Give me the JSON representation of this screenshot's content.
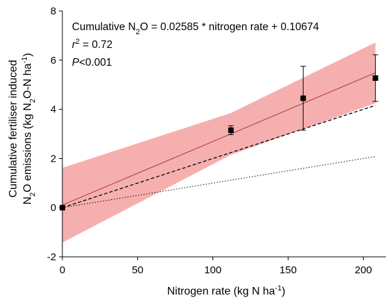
{
  "chart_data": {
    "type": "scatter",
    "xlabel": {
      "main": "Nitrogen rate (kg N ha",
      "sup": "-1",
      "end": ")"
    },
    "ylabel": {
      "line1": "Cumulative fertiliser induced",
      "line2_a": "N",
      "line2_sub": "2",
      "line2_b": "O emissions (kg N",
      "line2_sub2": "2",
      "line2_c": "O-N ha",
      "line2_sup": "-1",
      "line2_d": ")"
    },
    "xlim": [
      0,
      215
    ],
    "ylim": [
      -2,
      8
    ],
    "xticks": [
      0,
      50,
      100,
      150,
      200
    ],
    "yticks": [
      -2,
      0,
      2,
      4,
      6,
      8
    ],
    "annotations": {
      "equation_a": "Cumulative N",
      "equation_sub": "2",
      "equation_b": "O = 0.02585 * nitrogen rate + 0.10674",
      "r2_r": "r",
      "r2_sup": "2",
      "r2_rest": " = 0.72",
      "p_p": "P",
      "p_rest": "<0.001"
    },
    "points": [
      {
        "x": 0,
        "y": 0.0,
        "err": 0.0
      },
      {
        "x": 112,
        "y": 3.15,
        "err": 0.18
      },
      {
        "x": 160,
        "y": 4.45,
        "err": 1.3
      },
      {
        "x": 208,
        "y": 5.27,
        "err": 0.95
      }
    ],
    "regression": {
      "slope": 0.02585,
      "intercept": 0.10674,
      "x_range": [
        0,
        208
      ]
    },
    "confidence_band": {
      "upper": [
        [
          0,
          1.62
        ],
        [
          112,
          3.85
        ],
        [
          208,
          6.72
        ]
      ],
      "lower": [
        [
          0,
          -1.42
        ],
        [
          112,
          2.15
        ],
        [
          208,
          4.25
        ]
      ]
    },
    "dashed_line": [
      [
        0,
        0.0
      ],
      [
        208,
        4.16
      ]
    ],
    "dotted_line": [
      [
        0,
        0.0
      ],
      [
        208,
        2.08
      ]
    ],
    "colors": {
      "band": "#f4a1a1",
      "regression": "#b2464f",
      "points": "#000000"
    }
  }
}
